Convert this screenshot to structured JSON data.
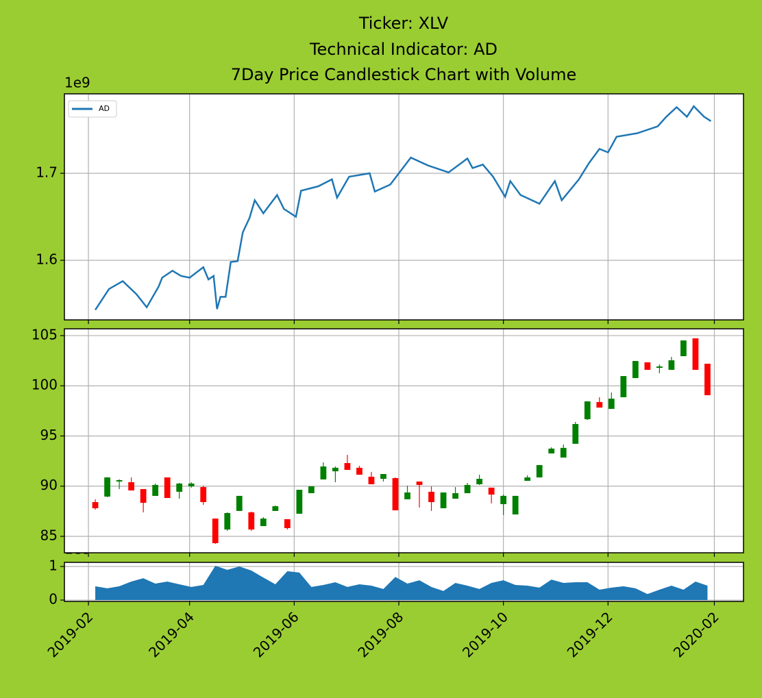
{
  "chart_data": [
    {
      "type": "line",
      "title": [
        "Ticker: XLV",
        "Technical Indicator: AD",
        "7Day Price Candlestick Chart with Volume"
      ],
      "offset_label": "1e9",
      "legend": "upper left",
      "grid": true,
      "ylim": [
        1.5315,
        1.7913
      ],
      "yticks": [
        1.6,
        1.7
      ],
      "x": [
        "2019-02-05",
        "2019-02-09",
        "2019-02-13",
        "2019-02-21",
        "2019-03-01",
        "2019-03-07",
        "2019-03-14",
        "2019-03-16",
        "2019-03-22",
        "2019-03-27",
        "2019-04-01",
        "2019-04-09",
        "2019-04-12",
        "2019-04-15",
        "2019-04-17",
        "2019-04-19",
        "2019-04-22",
        "2019-04-25",
        "2019-04-29",
        "2019-05-02",
        "2019-05-06",
        "2019-05-09",
        "2019-05-14",
        "2019-05-22",
        "2019-05-26",
        "2019-06-02",
        "2019-06-05",
        "2019-06-15",
        "2019-06-23",
        "2019-06-26",
        "2019-07-03",
        "2019-07-15",
        "2019-07-18",
        "2019-07-27",
        "2019-08-08",
        "2019-08-18",
        "2019-08-30",
        "2019-09-10",
        "2019-09-13",
        "2019-09-19",
        "2019-09-25",
        "2019-10-02",
        "2019-10-05",
        "2019-10-11",
        "2019-10-22",
        "2019-10-31",
        "2019-11-04",
        "2019-11-14",
        "2019-11-20",
        "2019-11-26",
        "2019-12-01",
        "2019-12-06",
        "2019-12-18",
        "2019-12-30",
        "2020-01-04",
        "2020-01-10",
        "2020-01-16",
        "2020-01-20",
        "2020-01-26",
        "2020-01-30"
      ],
      "series": [
        {
          "name": "AD",
          "color": "#1f77b4",
          "values": [
            1.543,
            1.555,
            1.567,
            1.576,
            1.561,
            1.546,
            1.57,
            1.58,
            1.588,
            1.582,
            1.58,
            1.592,
            1.578,
            1.582,
            1.544,
            1.558,
            1.558,
            1.598,
            1.599,
            1.632,
            1.649,
            1.669,
            1.654,
            1.675,
            1.659,
            1.65,
            1.68,
            1.685,
            1.693,
            1.672,
            1.696,
            1.7,
            1.679,
            1.687,
            1.718,
            1.709,
            1.701,
            1.717,
            1.706,
            1.71,
            1.696,
            1.673,
            1.691,
            1.675,
            1.665,
            1.691,
            1.669,
            1.693,
            1.712,
            1.728,
            1.724,
            1.742,
            1.746,
            1.754,
            1.765,
            1.776,
            1.765,
            1.777,
            1.765,
            1.76
          ]
        }
      ]
    },
    {
      "type": "candlestick",
      "grid": true,
      "up_color": "green",
      "down_color": "red",
      "ylim": [
        83.36,
        105.68
      ],
      "yticks": [
        85,
        90,
        95,
        100,
        105
      ],
      "x": [
        "2019-02-05",
        "2019-02-12",
        "2019-02-19",
        "2019-02-26",
        "2019-03-05",
        "2019-03-12",
        "2019-03-19",
        "2019-03-26",
        "2019-04-02",
        "2019-04-09",
        "2019-04-16",
        "2019-04-23",
        "2019-04-30",
        "2019-05-07",
        "2019-05-14",
        "2019-05-21",
        "2019-05-28",
        "2019-06-04",
        "2019-06-11",
        "2019-06-18",
        "2019-06-25",
        "2019-07-02",
        "2019-07-09",
        "2019-07-16",
        "2019-07-23",
        "2019-07-30",
        "2019-08-06",
        "2019-08-13",
        "2019-08-20",
        "2019-08-27",
        "2019-09-03",
        "2019-09-10",
        "2019-09-17",
        "2019-09-24",
        "2019-10-01",
        "2019-10-08",
        "2019-10-15",
        "2019-10-22",
        "2019-10-29",
        "2019-11-05",
        "2019-11-12",
        "2019-11-19",
        "2019-11-26",
        "2019-12-03",
        "2019-12-10",
        "2019-12-17",
        "2019-12-24",
        "2019-12-31",
        "2020-01-07",
        "2020-01-14",
        "2020-01-21",
        "2020-01-28"
      ],
      "open": [
        88.41,
        88.96,
        90.46,
        90.39,
        89.71,
        89.03,
        90.87,
        89.44,
        89.98,
        89.91,
        86.77,
        85.68,
        87.53,
        87.39,
        86.02,
        87.53,
        86.71,
        87.25,
        89.3,
        90.67,
        91.48,
        92.3,
        91.83,
        90.94,
        90.73,
        90.8,
        88.69,
        90.46,
        89.44,
        87.8,
        88.75,
        89.3,
        90.19,
        89.85,
        88.21,
        87.18,
        90.53,
        90.87,
        93.26,
        92.85,
        94.22,
        96.67,
        98.38,
        97.7,
        98.86,
        100.77,
        102.34,
        101.79,
        101.59,
        102.95,
        104.73,
        102.2
      ],
      "high": [
        88.69,
        90.9,
        90.67,
        90.87,
        89.71,
        90.26,
        90.87,
        90.32,
        90.39,
        90.05,
        86.77,
        87.39,
        89.03,
        87.46,
        86.91,
        88.07,
        86.71,
        89.64,
        89.98,
        92.37,
        91.96,
        93.12,
        92.03,
        91.42,
        91.21,
        90.87,
        90.05,
        90.46,
        89.98,
        89.37,
        89.91,
        90.32,
        91.14,
        89.85,
        89.16,
        89.03,
        91.08,
        92.1,
        93.87,
        94.15,
        96.4,
        98.45,
        98.86,
        99.33,
        100.97,
        102.47,
        102.34,
        102.13,
        102.88,
        104.52,
        104.73,
        102.2
      ],
      "low": [
        87.66,
        88.9,
        89.71,
        89.57,
        87.39,
        89.03,
        88.82,
        88.75,
        89.85,
        88.14,
        84.25,
        85.55,
        87.53,
        85.55,
        86.02,
        87.53,
        85.68,
        87.25,
        89.3,
        90.67,
        90.39,
        91.62,
        91.14,
        90.19,
        90.46,
        87.59,
        88.69,
        87.87,
        87.53,
        87.8,
        88.75,
        89.3,
        90.12,
        88.28,
        87.12,
        87.18,
        90.53,
        90.87,
        93.26,
        92.85,
        94.22,
        96.6,
        97.83,
        97.7,
        98.86,
        100.77,
        101.59,
        101.25,
        101.59,
        102.95,
        101.59,
        99.06
      ],
      "close": [
        87.8,
        90.87,
        90.6,
        89.57,
        88.34,
        90.12,
        88.82,
        90.26,
        90.26,
        88.41,
        84.32,
        87.32,
        89.03,
        85.68,
        86.77,
        88.0,
        85.82,
        89.64,
        89.98,
        91.96,
        91.83,
        91.62,
        91.14,
        90.19,
        91.21,
        87.59,
        89.37,
        90.12,
        88.41,
        89.37,
        89.3,
        90.12,
        90.73,
        89.16,
        89.03,
        89.03,
        90.87,
        92.1,
        93.74,
        93.81,
        96.19,
        98.45,
        97.83,
        98.72,
        100.97,
        102.47,
        101.59,
        101.93,
        102.54,
        104.52,
        101.59,
        99.06
      ]
    },
    {
      "type": "area",
      "grid": true,
      "offset_label": "1e8",
      "color": "#1f77b4",
      "ylim": [
        -0.04,
        1.122
      ],
      "yticks": [
        0,
        1
      ],
      "xlim": [
        "2019-01-18",
        "2020-02-18"
      ],
      "xticks": [
        "2019-02",
        "2019-04",
        "2019-06",
        "2019-08",
        "2019-10",
        "2019-12",
        "2020-02"
      ],
      "x": [
        "2019-02-05",
        "2019-02-12",
        "2019-02-19",
        "2019-02-26",
        "2019-03-05",
        "2019-03-12",
        "2019-03-19",
        "2019-03-26",
        "2019-04-02",
        "2019-04-09",
        "2019-04-16",
        "2019-04-23",
        "2019-04-30",
        "2019-05-07",
        "2019-05-14",
        "2019-05-21",
        "2019-05-28",
        "2019-06-04",
        "2019-06-11",
        "2019-06-18",
        "2019-06-25",
        "2019-07-02",
        "2019-07-09",
        "2019-07-16",
        "2019-07-23",
        "2019-07-30",
        "2019-08-06",
        "2019-08-13",
        "2019-08-20",
        "2019-08-27",
        "2019-09-03",
        "2019-09-10",
        "2019-09-17",
        "2019-09-24",
        "2019-10-01",
        "2019-10-08",
        "2019-10-15",
        "2019-10-22",
        "2019-10-29",
        "2019-11-05",
        "2019-11-12",
        "2019-11-19",
        "2019-11-26",
        "2019-12-03",
        "2019-12-10",
        "2019-12-17",
        "2019-12-24",
        "2019-12-31",
        "2020-01-07",
        "2020-01-14",
        "2020-01-21",
        "2020-01-28"
      ],
      "values": [
        0.41,
        0.35,
        0.41,
        0.55,
        0.65,
        0.49,
        0.55,
        0.47,
        0.39,
        0.45,
        1.02,
        0.9,
        1.0,
        0.88,
        0.67,
        0.47,
        0.86,
        0.82,
        0.39,
        0.45,
        0.53,
        0.39,
        0.47,
        0.43,
        0.33,
        0.69,
        0.49,
        0.59,
        0.39,
        0.27,
        0.51,
        0.43,
        0.33,
        0.51,
        0.59,
        0.45,
        0.43,
        0.37,
        0.61,
        0.51,
        0.53,
        0.53,
        0.31,
        0.37,
        0.41,
        0.35,
        0.18,
        0.31,
        0.43,
        0.31,
        0.55,
        0.43
      ]
    }
  ]
}
